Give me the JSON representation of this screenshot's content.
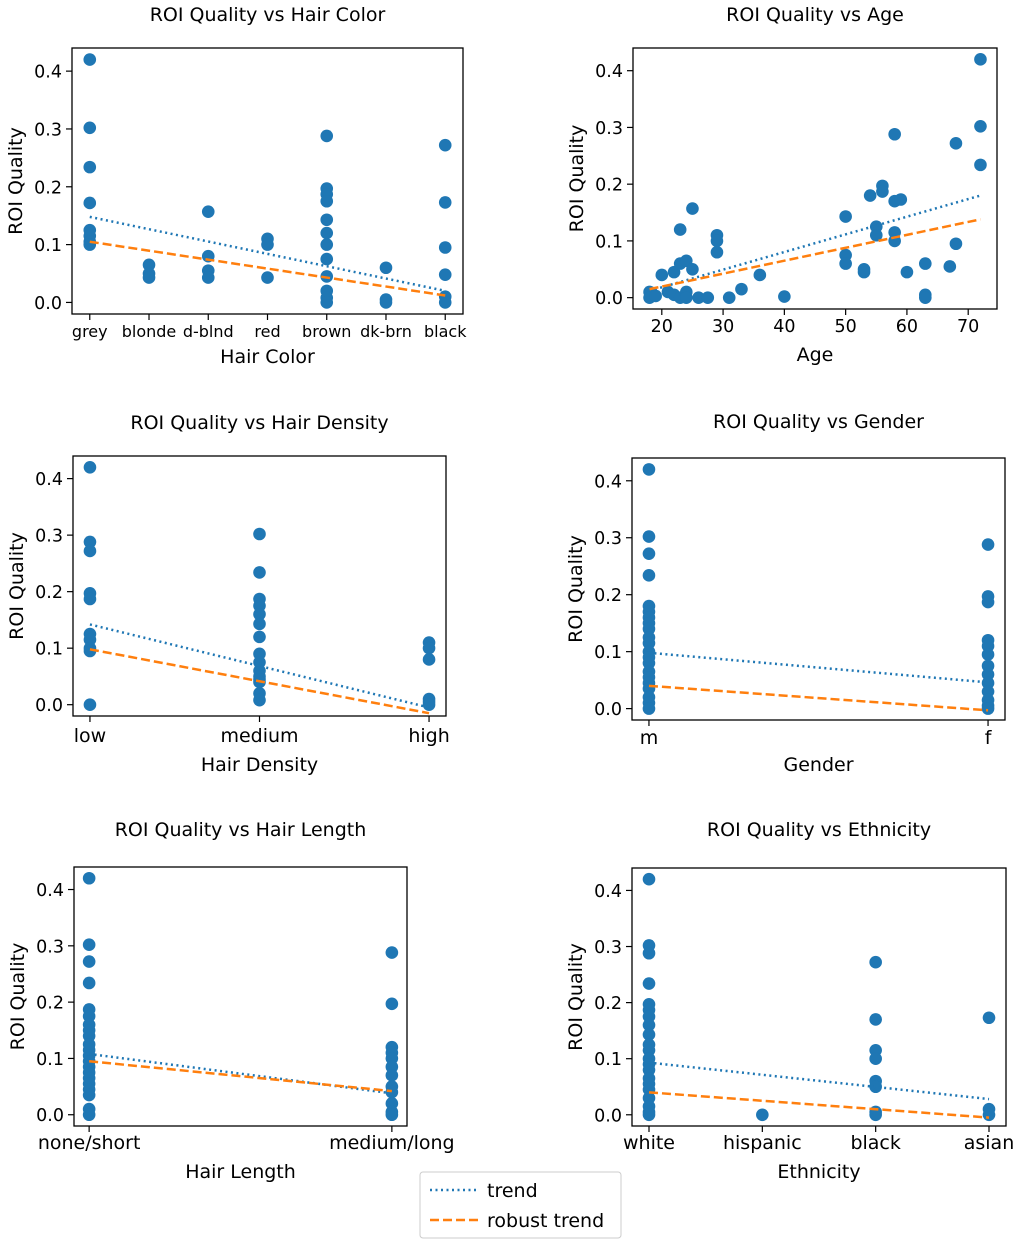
{
  "colors": {
    "points": "#1f77b4",
    "trend": "#1f77b4",
    "robust": "#ff7f0e"
  },
  "legend": {
    "trend": "trend",
    "robust": "robust trend",
    "placement": "bottom-center"
  },
  "chart_data": [
    {
      "type": "scatter",
      "title": "ROI Quality vs Hair Color",
      "xlabel": "Hair Color",
      "ylabel": "ROI Quality",
      "categorical": true,
      "categories": [
        "grey",
        "blonde",
        "d-blnd",
        "red",
        "brown",
        "dk-brn",
        "black"
      ],
      "xlim": [
        -0.3,
        6.3
      ],
      "ylim": [
        -0.02,
        0.44
      ],
      "yticks": [
        "0.0",
        "0.1",
        "0.2",
        "0.3",
        "0.4"
      ],
      "points": [
        [
          0,
          0.42
        ],
        [
          0,
          0.302
        ],
        [
          0,
          0.234
        ],
        [
          0,
          0.172
        ],
        [
          0,
          0.125
        ],
        [
          0,
          0.115
        ],
        [
          0,
          0.105
        ],
        [
          0,
          0.1
        ],
        [
          1,
          0.065
        ],
        [
          1,
          0.05
        ],
        [
          1,
          0.043
        ],
        [
          2,
          0.157
        ],
        [
          2,
          0.08
        ],
        [
          2,
          0.055
        ],
        [
          2,
          0.043
        ],
        [
          3,
          0.11
        ],
        [
          3,
          0.1
        ],
        [
          3,
          0.043
        ],
        [
          4,
          0.288
        ],
        [
          4,
          0.197
        ],
        [
          4,
          0.187
        ],
        [
          4,
          0.175
        ],
        [
          4,
          0.143
        ],
        [
          4,
          0.12
        ],
        [
          4,
          0.1
        ],
        [
          4,
          0.075
        ],
        [
          4,
          0.045
        ],
        [
          4,
          0.02
        ],
        [
          4,
          0.008
        ],
        [
          4,
          0.0
        ],
        [
          5,
          0.06
        ],
        [
          5,
          0.005
        ],
        [
          5,
          0.0
        ],
        [
          6,
          0.272
        ],
        [
          6,
          0.173
        ],
        [
          6,
          0.095
        ],
        [
          6,
          0.048
        ],
        [
          6,
          0.01
        ],
        [
          6,
          0.0
        ]
      ],
      "trend": [
        [
          0,
          0.148
        ],
        [
          6,
          0.02
        ]
      ],
      "robust": [
        [
          0,
          0.105
        ],
        [
          6,
          0.012
        ]
      ]
    },
    {
      "type": "scatter",
      "title": "ROI Quality vs Age",
      "xlabel": "Age",
      "ylabel": "ROI Quality",
      "categorical": false,
      "xticks": [
        20,
        30,
        40,
        50,
        60,
        70
      ],
      "xlim": [
        15.3,
        74.7
      ],
      "ylim": [
        -0.02,
        0.44
      ],
      "yticks": [
        "0.0",
        "0.1",
        "0.2",
        "0.3",
        "0.4"
      ],
      "points": [
        [
          18,
          0.01
        ],
        [
          18,
          0.0
        ],
        [
          19,
          0.003
        ],
        [
          20,
          0.04
        ],
        [
          21,
          0.01
        ],
        [
          22,
          0.045
        ],
        [
          22,
          0.005
        ],
        [
          23,
          0.06
        ],
        [
          23,
          0.12
        ],
        [
          23,
          0.0
        ],
        [
          24,
          0.065
        ],
        [
          24,
          0.01
        ],
        [
          24,
          0.0
        ],
        [
          25,
          0.157
        ],
        [
          25,
          0.05
        ],
        [
          26,
          0.0
        ],
        [
          27.5,
          0.0
        ],
        [
          29,
          0.11
        ],
        [
          29,
          0.1
        ],
        [
          29,
          0.08
        ],
        [
          31,
          0.0
        ],
        [
          33,
          0.015
        ],
        [
          36,
          0.04
        ],
        [
          40,
          0.002
        ],
        [
          50,
          0.143
        ],
        [
          50,
          0.075
        ],
        [
          50,
          0.06
        ],
        [
          53,
          0.045
        ],
        [
          53,
          0.05
        ],
        [
          54,
          0.18
        ],
        [
          55,
          0.125
        ],
        [
          55,
          0.11
        ],
        [
          56,
          0.197
        ],
        [
          56,
          0.187
        ],
        [
          58,
          0.288
        ],
        [
          58,
          0.17
        ],
        [
          58,
          0.115
        ],
        [
          58,
          0.1
        ],
        [
          59,
          0.173
        ],
        [
          60,
          0.045
        ],
        [
          63,
          0.06
        ],
        [
          63,
          0.005
        ],
        [
          63,
          0.0
        ],
        [
          67,
          0.055
        ],
        [
          68,
          0.272
        ],
        [
          68,
          0.095
        ],
        [
          72,
          0.42
        ],
        [
          72,
          0.302
        ],
        [
          72,
          0.234
        ]
      ],
      "trend": [
        [
          18,
          0.012
        ],
        [
          72,
          0.18
        ]
      ],
      "robust": [
        [
          18,
          0.015
        ],
        [
          72,
          0.138
        ]
      ]
    },
    {
      "type": "scatter",
      "title": "ROI Quality vs Hair Density",
      "xlabel": "Hair Density",
      "ylabel": "ROI Quality",
      "categorical": true,
      "categories": [
        "low",
        "medium",
        "high"
      ],
      "xlim": [
        -0.1,
        2.1
      ],
      "ylim": [
        -0.02,
        0.44
      ],
      "yticks": [
        "0.0",
        "0.1",
        "0.2",
        "0.3",
        "0.4"
      ],
      "points": [
        [
          0,
          0.42
        ],
        [
          0,
          0.288
        ],
        [
          0,
          0.272
        ],
        [
          0,
          0.197
        ],
        [
          0,
          0.187
        ],
        [
          0,
          0.125
        ],
        [
          0,
          0.115
        ],
        [
          0,
          0.1
        ],
        [
          0,
          0.095
        ],
        [
          0,
          0.0
        ],
        [
          1,
          0.302
        ],
        [
          1,
          0.234
        ],
        [
          1,
          0.187
        ],
        [
          1,
          0.175
        ],
        [
          1,
          0.16
        ],
        [
          1,
          0.143
        ],
        [
          1,
          0.12
        ],
        [
          1,
          0.09
        ],
        [
          1,
          0.075
        ],
        [
          1,
          0.06
        ],
        [
          1,
          0.05
        ],
        [
          1,
          0.045
        ],
        [
          1,
          0.04
        ],
        [
          1,
          0.02
        ],
        [
          1,
          0.008
        ],
        [
          2,
          0.11
        ],
        [
          2,
          0.1
        ],
        [
          2,
          0.08
        ],
        [
          2,
          0.01
        ],
        [
          2,
          0.005
        ],
        [
          2,
          0.0
        ]
      ],
      "trend": [
        [
          0,
          0.142
        ],
        [
          2,
          -0.005
        ]
      ],
      "robust": [
        [
          0,
          0.098
        ],
        [
          2,
          -0.015
        ]
      ]
    },
    {
      "type": "scatter",
      "title": "ROI Quality vs Gender",
      "xlabel": "Gender",
      "ylabel": "ROI Quality",
      "categorical": true,
      "categories": [
        "m",
        "f"
      ],
      "xlim": [
        -0.05,
        1.05
      ],
      "ylim": [
        -0.02,
        0.44
      ],
      "yticks": [
        "0.0",
        "0.1",
        "0.2",
        "0.3",
        "0.4"
      ],
      "points": [
        [
          0,
          0.42
        ],
        [
          0,
          0.302
        ],
        [
          0,
          0.272
        ],
        [
          0,
          0.234
        ],
        [
          0,
          0.18
        ],
        [
          0,
          0.17
        ],
        [
          0,
          0.16
        ],
        [
          0,
          0.15
        ],
        [
          0,
          0.14
        ],
        [
          0,
          0.125
        ],
        [
          0,
          0.115
        ],
        [
          0,
          0.1
        ],
        [
          0,
          0.09
        ],
        [
          0,
          0.08
        ],
        [
          0,
          0.065
        ],
        [
          0,
          0.055
        ],
        [
          0,
          0.045
        ],
        [
          0,
          0.035
        ],
        [
          0,
          0.02
        ],
        [
          0,
          0.01
        ],
        [
          0,
          0.0
        ],
        [
          1,
          0.288
        ],
        [
          1,
          0.197
        ],
        [
          1,
          0.187
        ],
        [
          1,
          0.12
        ],
        [
          1,
          0.11
        ],
        [
          1,
          0.095
        ],
        [
          1,
          0.075
        ],
        [
          1,
          0.06
        ],
        [
          1,
          0.045
        ],
        [
          1,
          0.03
        ],
        [
          1,
          0.015
        ],
        [
          1,
          0.005
        ],
        [
          1,
          0.0
        ]
      ],
      "trend": [
        [
          0,
          0.098
        ],
        [
          1,
          0.046
        ]
      ],
      "robust": [
        [
          0,
          0.04
        ],
        [
          1,
          -0.003
        ]
      ]
    },
    {
      "type": "scatter",
      "title": "ROI Quality vs Hair Length",
      "xlabel": "Hair Length",
      "ylabel": "ROI Quality",
      "categorical": true,
      "categories": [
        "none/short",
        "medium/long"
      ],
      "xlim": [
        -0.05,
        1.05
      ],
      "ylim": [
        -0.02,
        0.44
      ],
      "yticks": [
        "0.0",
        "0.1",
        "0.2",
        "0.3",
        "0.4"
      ],
      "points": [
        [
          0,
          0.42
        ],
        [
          0,
          0.302
        ],
        [
          0,
          0.272
        ],
        [
          0,
          0.234
        ],
        [
          0,
          0.187
        ],
        [
          0,
          0.175
        ],
        [
          0,
          0.16
        ],
        [
          0,
          0.15
        ],
        [
          0,
          0.14
        ],
        [
          0,
          0.125
        ],
        [
          0,
          0.115
        ],
        [
          0,
          0.105
        ],
        [
          0,
          0.095
        ],
        [
          0,
          0.085
        ],
        [
          0,
          0.075
        ],
        [
          0,
          0.065
        ],
        [
          0,
          0.055
        ],
        [
          0,
          0.045
        ],
        [
          0,
          0.035
        ],
        [
          0,
          0.01
        ],
        [
          0,
          0.0
        ],
        [
          1,
          0.288
        ],
        [
          1,
          0.197
        ],
        [
          1,
          0.12
        ],
        [
          1,
          0.11
        ],
        [
          1,
          0.1
        ],
        [
          1,
          0.085
        ],
        [
          1,
          0.07
        ],
        [
          1,
          0.05
        ],
        [
          1,
          0.04
        ],
        [
          1,
          0.02
        ],
        [
          1,
          0.005
        ],
        [
          1,
          0.0
        ]
      ],
      "trend": [
        [
          0,
          0.108
        ],
        [
          1,
          0.038
        ]
      ],
      "robust": [
        [
          0,
          0.095
        ],
        [
          1,
          0.042
        ]
      ]
    },
    {
      "type": "scatter",
      "title": "ROI Quality vs Ethnicity",
      "xlabel": "Ethnicity",
      "ylabel": "ROI Quality",
      "categorical": true,
      "categories": [
        "white",
        "hispanic",
        "black",
        "asian"
      ],
      "xlim": [
        -0.15,
        3.15
      ],
      "ylim": [
        -0.02,
        0.44
      ],
      "yticks": [
        "0.0",
        "0.1",
        "0.2",
        "0.3",
        "0.4"
      ],
      "points": [
        [
          0,
          0.42
        ],
        [
          0,
          0.302
        ],
        [
          0,
          0.288
        ],
        [
          0,
          0.234
        ],
        [
          0,
          0.197
        ],
        [
          0,
          0.187
        ],
        [
          0,
          0.175
        ],
        [
          0,
          0.16
        ],
        [
          0,
          0.143
        ],
        [
          0,
          0.125
        ],
        [
          0,
          0.115
        ],
        [
          0,
          0.1
        ],
        [
          0,
          0.09
        ],
        [
          0,
          0.08
        ],
        [
          0,
          0.065
        ],
        [
          0,
          0.055
        ],
        [
          0,
          0.045
        ],
        [
          0,
          0.03
        ],
        [
          0,
          0.015
        ],
        [
          0,
          0.005
        ],
        [
          0,
          0.0
        ],
        [
          1,
          0.0
        ],
        [
          2,
          0.272
        ],
        [
          2,
          0.17
        ],
        [
          2,
          0.115
        ],
        [
          2,
          0.1
        ],
        [
          2,
          0.06
        ],
        [
          2,
          0.05
        ],
        [
          2,
          0.005
        ],
        [
          2,
          0.0
        ],
        [
          3,
          0.173
        ],
        [
          3,
          0.01
        ],
        [
          3,
          0.0
        ]
      ],
      "trend": [
        [
          0,
          0.093
        ],
        [
          3,
          0.028
        ]
      ],
      "robust": [
        [
          0,
          0.04
        ],
        [
          3,
          -0.005
        ]
      ]
    }
  ]
}
